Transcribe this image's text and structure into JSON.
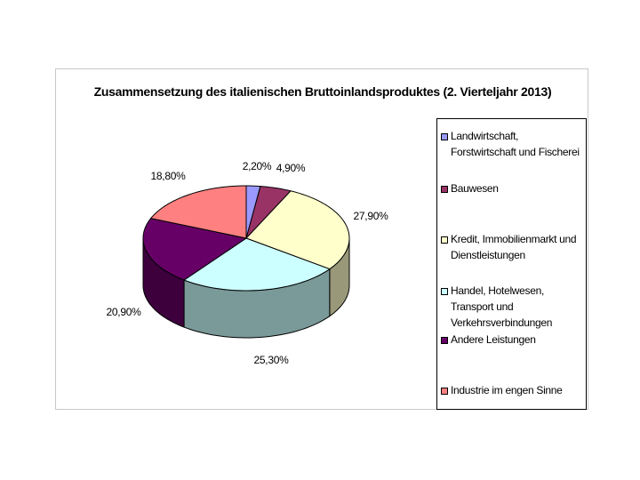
{
  "chart_data": {
    "type": "pie",
    "title": "Zusammensetzung des italienischen Bruttoinlandsproduktes (2. Vierteljahr 2013)",
    "legend_position": "right",
    "slices": [
      {
        "name": "Landwirtschaft, Forstwirtschaft und Fischerei",
        "value": 2.2,
        "label": "2,20%",
        "color": "#9999ff",
        "side_color": "#5c5c99"
      },
      {
        "name": "Bauwesen",
        "value": 4.9,
        "label": "4,90%",
        "color": "#993366",
        "side_color": "#5c1f3d"
      },
      {
        "name": "Kredit, Immobilienmarkt und Dienstleistungen",
        "value": 27.9,
        "label": "27,90%",
        "color": "#ffffcc",
        "side_color": "#99997a"
      },
      {
        "name": "Handel, Hotelwesen, Transport und Verkehrsverbindungen",
        "value": 25.3,
        "label": "25,30%",
        "color": "#ccffff",
        "side_color": "#7a9999"
      },
      {
        "name": "Andere Leistungen",
        "value": 20.9,
        "label": "20,90%",
        "color": "#660066",
        "side_color": "#3d003d"
      },
      {
        "name": "Industrie im engen Sinne",
        "value": 18.8,
        "label": "18,80%",
        "color": "#ff8080",
        "side_color": "#994d4d"
      }
    ]
  }
}
